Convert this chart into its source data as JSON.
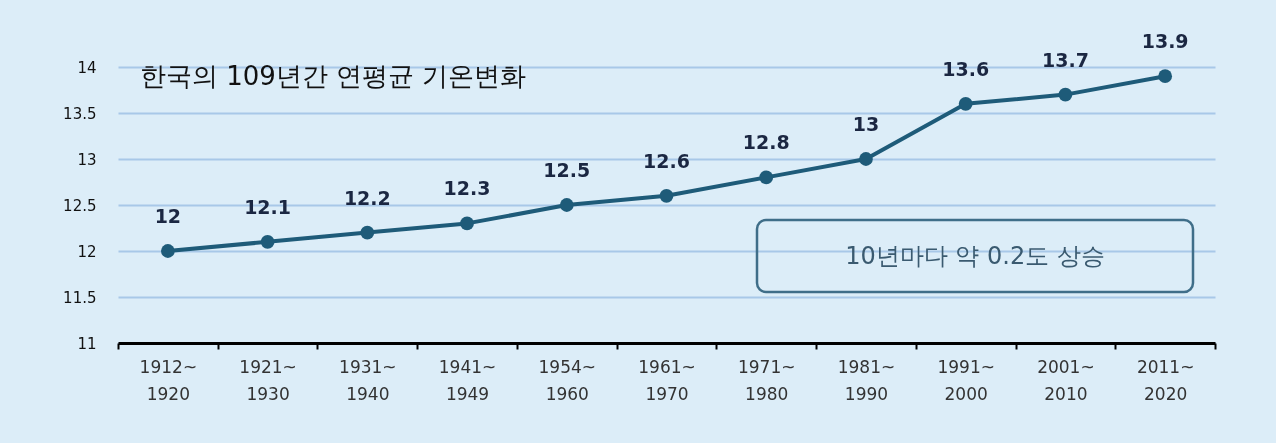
{
  "chart_data": {
    "type": "line",
    "title": "한국의 109년간 연평균 기온변화",
    "categories": [
      "1912~\n1920",
      "1921~\n1930",
      "1931~\n1940",
      "1941~\n1949",
      "1954~\n1960",
      "1961~\n1970",
      "1971~\n1980",
      "1981~\n1990",
      "1991~\n2000",
      "2001~\n2010",
      "2011~\n2020"
    ],
    "series": [
      {
        "color": "#1e5b79",
        "values": [
          12,
          12.1,
          12.2,
          12.3,
          12.5,
          12.6,
          12.8,
          13,
          13.6,
          13.7,
          13.9
        ]
      }
    ],
    "ylim": [
      11,
      14
    ],
    "yticks": [
      11,
      11.5,
      12,
      12.5,
      13,
      13.5,
      14
    ],
    "grid": "y",
    "marker": "circle",
    "line_style": "solid",
    "data_labels": true,
    "annotations": [
      "10년마다 약 0.2도 상승"
    ]
  }
}
